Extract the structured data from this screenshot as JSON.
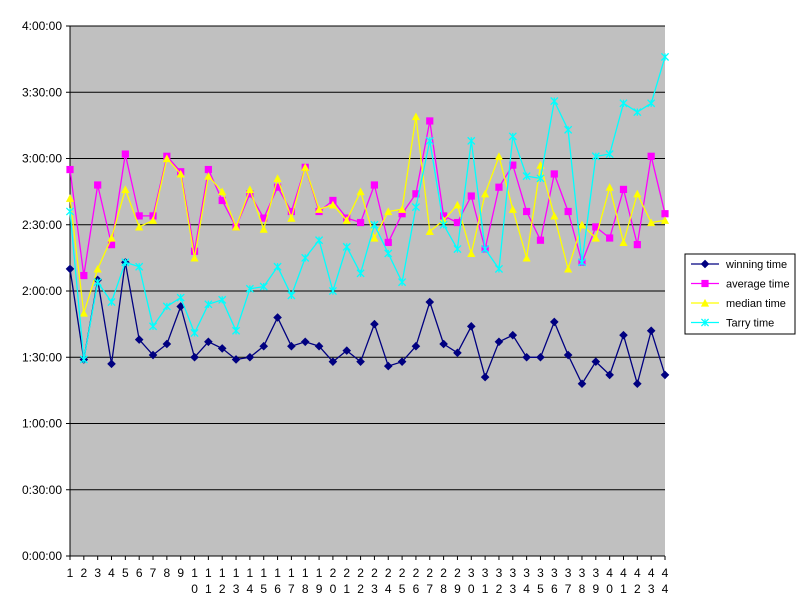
{
  "chart_data": {
    "type": "line",
    "title": "",
    "xlabel": "",
    "ylabel": "",
    "x": [
      1,
      2,
      3,
      4,
      5,
      6,
      7,
      8,
      9,
      10,
      11,
      12,
      13,
      14,
      15,
      16,
      17,
      18,
      19,
      20,
      21,
      22,
      23,
      24,
      25,
      26,
      27,
      28,
      29,
      30,
      31,
      32,
      33,
      34,
      35,
      36,
      37,
      38,
      39,
      40,
      41,
      42,
      43,
      44
    ],
    "y_tick_labels": [
      "0:00:00",
      "0:30:00",
      "1:00:00",
      "1:30:00",
      "2:00:00",
      "2:30:00",
      "3:00:00",
      "3:30:00",
      "4:00:00"
    ],
    "ylim_minutes": [
      0,
      240
    ],
    "grid": true,
    "legend_position": "right",
    "colors": {
      "plot_background": "#c0c0c0",
      "gridline": "#000000"
    },
    "series": [
      {
        "name": "winning time",
        "color": "#000080",
        "marker": "diamond",
        "values": [
          130,
          89,
          125,
          87,
          133,
          98,
          91,
          96,
          113,
          90,
          97,
          94,
          89,
          90,
          95,
          108,
          95,
          97,
          95,
          88,
          93,
          88,
          105,
          86,
          88,
          95,
          115,
          96,
          92,
          104,
          81,
          97,
          100,
          90,
          90,
          106,
          91,
          78,
          88,
          82,
          100,
          78,
          102,
          82
        ]
      },
      {
        "name": "average time",
        "color": "#ff00ff",
        "marker": "square",
        "values": [
          175,
          127,
          168,
          141,
          182,
          154,
          154,
          181,
          174,
          138,
          175,
          161,
          149,
          164,
          153,
          167,
          156,
          176,
          156,
          161,
          153,
          151,
          168,
          142,
          155,
          164,
          197,
          154,
          151,
          163,
          139,
          167,
          177,
          156,
          143,
          173,
          156,
          133,
          149,
          144,
          166,
          141,
          181,
          155
        ]
      },
      {
        "name": "median time",
        "color": "#ffff00",
        "marker": "triangle",
        "values": [
          162,
          110,
          130,
          144,
          166,
          149,
          152,
          180,
          173,
          135,
          172,
          165,
          149,
          166,
          148,
          171,
          153,
          176,
          157,
          159,
          152,
          165,
          144,
          156,
          157,
          199,
          147,
          152,
          159,
          137,
          164,
          181,
          157,
          135,
          177,
          154,
          130,
          150,
          144,
          167,
          142,
          164,
          151,
          152
        ]
      },
      {
        "name": "Tarry time",
        "color": "#00ffff",
        "marker": "x",
        "values": [
          156,
          89,
          124,
          115,
          133,
          131,
          104,
          113,
          117,
          101,
          114,
          116,
          102,
          121,
          122,
          131,
          118,
          135,
          143,
          120,
          140,
          128,
          150,
          137,
          124,
          158,
          188,
          150,
          139,
          188,
          139,
          130,
          190,
          172,
          171,
          206,
          193,
          133,
          181,
          182,
          205,
          201,
          205,
          226
        ]
      }
    ]
  }
}
